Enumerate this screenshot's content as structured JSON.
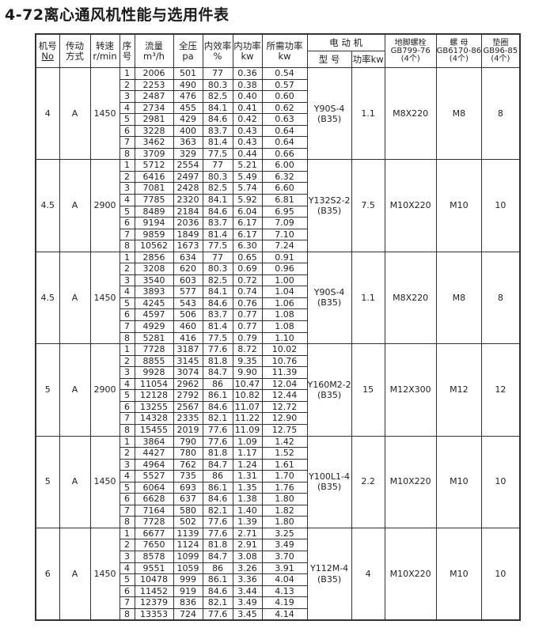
{
  "title": "4-72离心通风机性能与选用件表",
  "headers": {
    "no": [
      "机号",
      "No"
    ],
    "drive": [
      "传动",
      "方式"
    ],
    "speed": [
      "转速",
      "r/min"
    ],
    "seq": [
      "序",
      "号"
    ],
    "flow": [
      "流量",
      "m³/h"
    ],
    "pressure": [
      "全压",
      "pa"
    ],
    "eff": [
      "内效率",
      "%"
    ],
    "inpower": [
      "内功率",
      "kw"
    ],
    "reqpower": [
      "所需功率",
      "kw"
    ],
    "motor": "电 动 机",
    "motor_model": "型 号",
    "motor_power": "功率kw",
    "bolt": [
      "地脚螺栓",
      "GB799-76",
      "(4个)"
    ],
    "nut": [
      "螺 母",
      "GB6170-86",
      "(4个)"
    ],
    "washer": [
      "垫圈",
      "GB96-85",
      "(4个)"
    ]
  },
  "groups": [
    {
      "no": "4",
      "drive": "A",
      "speed": "1450",
      "model": "Y90S-4",
      "mount": "(B35)",
      "power": "1.1",
      "bolt": "M8X220",
      "nut": "M8",
      "washer": "8",
      "rows": [
        [
          "1",
          "2006",
          "501",
          "77",
          "0.36",
          "0.54"
        ],
        [
          "2",
          "2253",
          "490",
          "80.3",
          "0.38",
          "0.57"
        ],
        [
          "3",
          "2487",
          "476",
          "82.5",
          "0.40",
          "0.60"
        ],
        [
          "4",
          "2734",
          "455",
          "84.1",
          "0.41",
          "0.62"
        ],
        [
          "5",
          "2981",
          "429",
          "84.6",
          "0.42",
          "0.63"
        ],
        [
          "6",
          "3228",
          "400",
          "83.7",
          "0.43",
          "0.64"
        ],
        [
          "7",
          "3462",
          "363",
          "81.4",
          "0.43",
          "0.64"
        ],
        [
          "8",
          "3709",
          "329",
          "77.5",
          "0.44",
          "0.66"
        ]
      ]
    },
    {
      "no": "4.5",
      "drive": "A",
      "speed": "2900",
      "model": "Y132S2-2",
      "mount": "(B35)",
      "power": "7.5",
      "bolt": "M10X220",
      "nut": "M10",
      "washer": "10",
      "rows": [
        [
          "1",
          "5712",
          "2554",
          "77",
          "5.21",
          "6.00"
        ],
        [
          "2",
          "6416",
          "2497",
          "80.3",
          "5.49",
          "6.32"
        ],
        [
          "3",
          "7081",
          "2428",
          "82.5",
          "5.74",
          "6.60"
        ],
        [
          "4",
          "7785",
          "2320",
          "84.1",
          "5.92",
          "6.81"
        ],
        [
          "5",
          "8489",
          "2184",
          "84.6",
          "6.04",
          "6.95"
        ],
        [
          "6",
          "9194",
          "2036",
          "83.7",
          "6.17",
          "7.09"
        ],
        [
          "7",
          "9859",
          "1849",
          "81.4",
          "6.17",
          "7.10"
        ],
        [
          "8",
          "10562",
          "1673",
          "77.5",
          "6.30",
          "7.24"
        ]
      ]
    },
    {
      "no": "4.5",
      "drive": "A",
      "speed": "1450",
      "model": "Y90S-4",
      "mount": "(B35)",
      "power": "1.1",
      "bolt": "M8X220",
      "nut": "M8",
      "washer": "8",
      "rows": [
        [
          "1",
          "2856",
          "634",
          "77",
          "0.65",
          "0.91"
        ],
        [
          "2",
          "3208",
          "620",
          "80.3",
          "0.69",
          "0.96"
        ],
        [
          "3",
          "3540",
          "603",
          "82.5",
          "0.72",
          "1.00"
        ],
        [
          "4",
          "3893",
          "577",
          "84.1",
          "0.74",
          "1.04"
        ],
        [
          "5",
          "4245",
          "543",
          "84.6",
          "0.76",
          "1.06"
        ],
        [
          "6",
          "4597",
          "506",
          "83.7",
          "0.77",
          "1.08"
        ],
        [
          "7",
          "4929",
          "460",
          "81.4",
          "0.77",
          "1.08"
        ],
        [
          "8",
          "5281",
          "416",
          "77.5",
          "0.79",
          "1.10"
        ]
      ]
    },
    {
      "no": "5",
      "drive": "A",
      "speed": "2900",
      "model": "Y160M2-2",
      "mount": "(B35)",
      "power": "15",
      "bolt": "M12X300",
      "nut": "M12",
      "washer": "12",
      "rows": [
        [
          "1",
          "7728",
          "3187",
          "77.6",
          "8.72",
          "10.02"
        ],
        [
          "2",
          "8855",
          "3145",
          "81.8",
          "9.35",
          "10.76"
        ],
        [
          "3",
          "9928",
          "3074",
          "84.7",
          "9.90",
          "11.39"
        ],
        [
          "4",
          "11054",
          "2962",
          "86",
          "10.47",
          "12.04"
        ],
        [
          "5",
          "12128",
          "2792",
          "86.1",
          "10.82",
          "12.44"
        ],
        [
          "6",
          "13255",
          "2567",
          "84.6",
          "11.07",
          "12.72"
        ],
        [
          "7",
          "14328",
          "2335",
          "82.1",
          "11.22",
          "12.90"
        ],
        [
          "8",
          "15455",
          "2019",
          "77.6",
          "11.09",
          "12.75"
        ]
      ]
    },
    {
      "no": "5",
      "drive": "A",
      "speed": "1450",
      "model": "Y100L1-4",
      "mount": "(B35)",
      "power": "2.2",
      "bolt": "M10X220",
      "nut": "M10",
      "washer": "10",
      "rows": [
        [
          "1",
          "3864",
          "790",
          "77.6",
          "1.09",
          "1.42"
        ],
        [
          "2",
          "4427",
          "780",
          "81.8",
          "1.17",
          "1.52"
        ],
        [
          "3",
          "4964",
          "762",
          "84.7",
          "1.24",
          "1.61"
        ],
        [
          "4",
          "5527",
          "735",
          "86",
          "1.31",
          "1.70"
        ],
        [
          "5",
          "6064",
          "693",
          "86.1",
          "1.35",
          "1.76"
        ],
        [
          "6",
          "6628",
          "637",
          "84.6",
          "1.38",
          "1.80"
        ],
        [
          "7",
          "7164",
          "580",
          "82.1",
          "1.40",
          "1.82"
        ],
        [
          "8",
          "7728",
          "502",
          "77.6",
          "1.39",
          "1.80"
        ]
      ]
    },
    {
      "no": "6",
      "drive": "A",
      "speed": "1450",
      "model": "Y112M-4",
      "mount": "(B35)",
      "power": "4",
      "bolt": "M10X220",
      "nut": "M10",
      "washer": "10",
      "rows": [
        [
          "1",
          "6677",
          "1139",
          "77.6",
          "2.71",
          "3.25"
        ],
        [
          "2",
          "7650",
          "1124",
          "81.8",
          "2.91",
          "3.49"
        ],
        [
          "3",
          "8578",
          "1099",
          "84.7",
          "3.08",
          "3.70"
        ],
        [
          "4",
          "9551",
          "1059",
          "86",
          "3.26",
          "3.91"
        ],
        [
          "5",
          "10478",
          "999",
          "86.1",
          "3.36",
          "4.04"
        ],
        [
          "6",
          "11452",
          "919",
          "84.6",
          "3.44",
          "4.13"
        ],
        [
          "7",
          "12379",
          "836",
          "82.1",
          "3.49",
          "4.19"
        ],
        [
          "8",
          "13353",
          "724",
          "77.6",
          "3.45",
          "4.14"
        ]
      ]
    }
  ]
}
